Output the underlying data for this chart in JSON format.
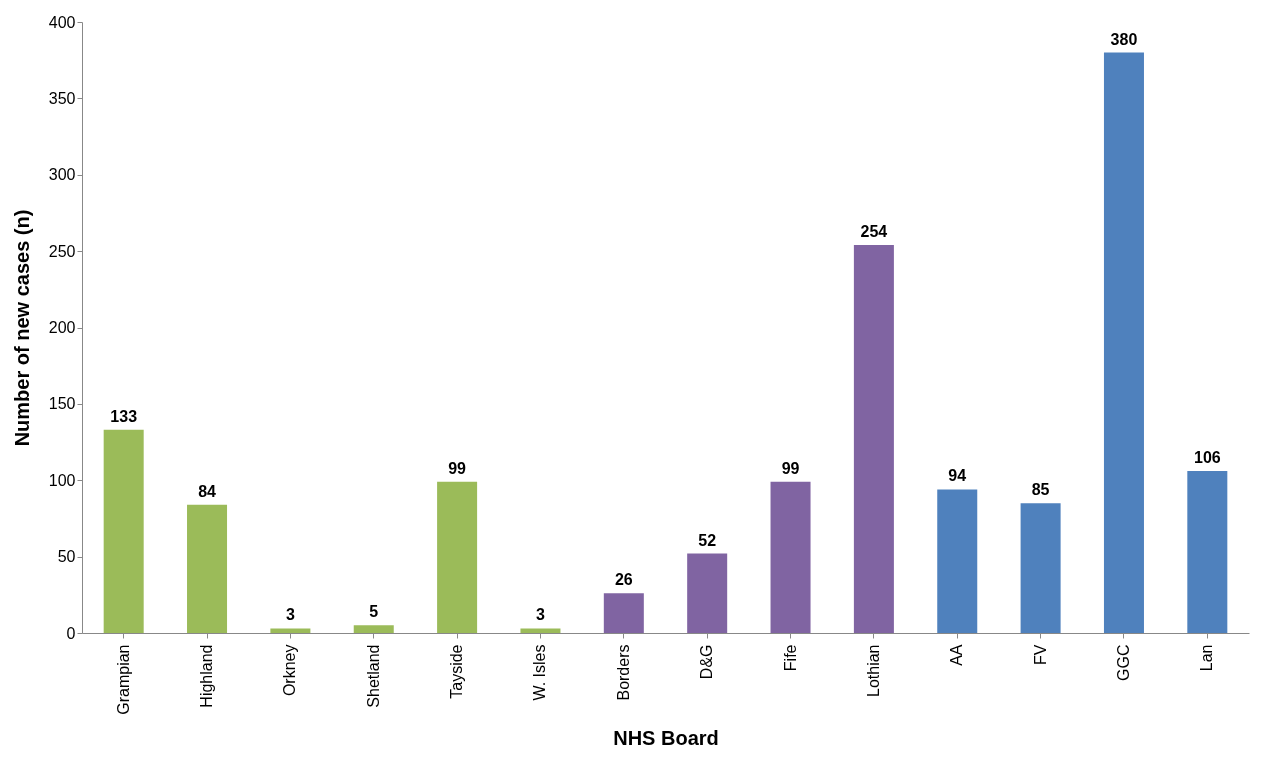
{
  "chart_data": {
    "type": "bar",
    "xlabel": "NHS Board",
    "ylabel": "Number of new cases (n)",
    "categories": [
      "Grampian",
      "Highland",
      "Orkney",
      "Shetland",
      "Tayside",
      "W. Isles",
      "Borders",
      "D&G",
      "Fife",
      "Lothian",
      "AA",
      "FV",
      "GGC",
      "Lan"
    ],
    "values": [
      133,
      84,
      3,
      5,
      99,
      3,
      26,
      52,
      99,
      254,
      94,
      85,
      380,
      106
    ],
    "colors": [
      "#9bbb59",
      "#9bbb59",
      "#9bbb59",
      "#9bbb59",
      "#9bbb59",
      "#9bbb59",
      "#8064a2",
      "#8064a2",
      "#8064a2",
      "#8064a2",
      "#4f81bd",
      "#4f81bd",
      "#4f81bd",
      "#4f81bd"
    ],
    "ylim": [
      0,
      400
    ],
    "yticks": [
      0,
      50,
      100,
      150,
      200,
      250,
      300,
      350,
      400
    ],
    "data_labels": true,
    "grid": false
  }
}
